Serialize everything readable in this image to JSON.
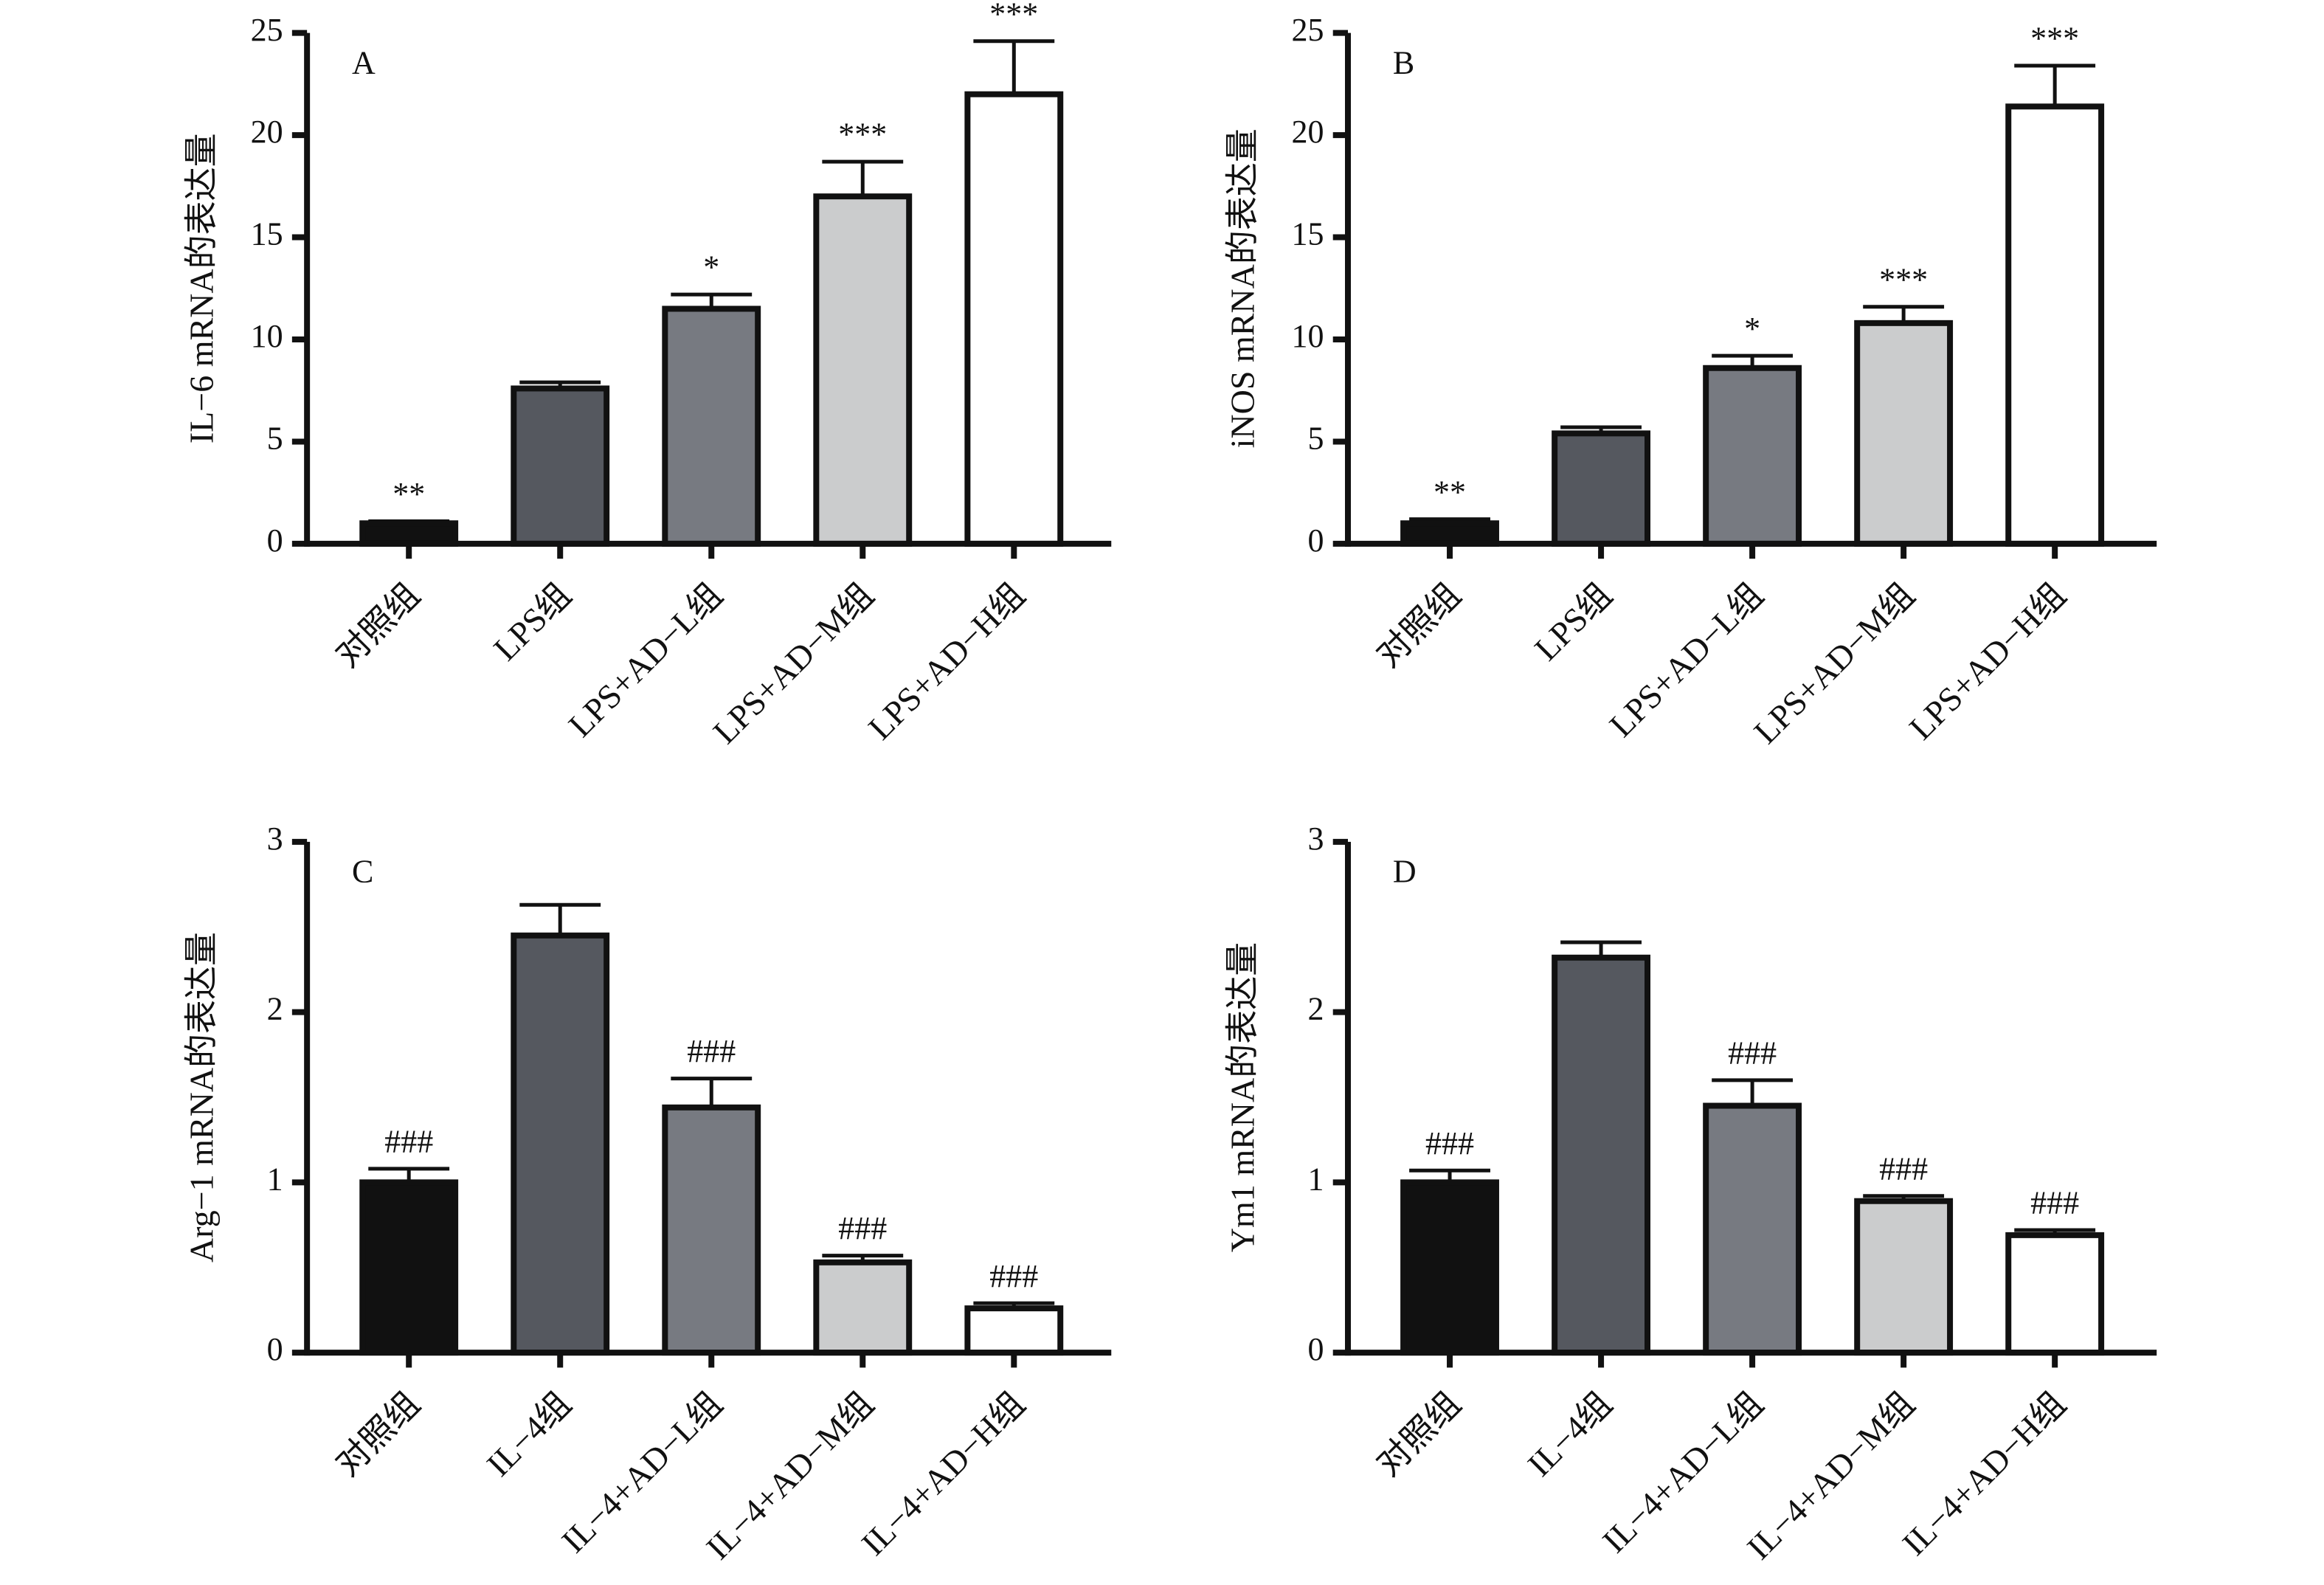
{
  "chart_data": [
    {
      "type": "bar",
      "panel": "A",
      "ylabel": "IL−6 mRNA的表达量",
      "categories": [
        "对照组",
        "LPS组",
        "LPS+AD−L组",
        "LPS+AD−M组",
        "LPS+AD−H组"
      ],
      "values": [
        1.0,
        7.6,
        11.5,
        17.0,
        22.0
      ],
      "errors": [
        0.1,
        0.3,
        0.7,
        1.7,
        2.6
      ],
      "annotations": [
        "**",
        null,
        "*",
        "***",
        "***"
      ],
      "colors": [
        "#111111",
        "#55585f",
        "#777a81",
        "#cbcccd",
        "#ffffff"
      ],
      "ylim": [
        0,
        25
      ],
      "yticks": [
        0,
        5,
        10,
        15,
        20,
        25
      ]
    },
    {
      "type": "bar",
      "panel": "B",
      "ylabel": "iNOS mRNA的表达量",
      "categories": [
        "对照组",
        "LPS组",
        "LPS+AD−L组",
        "LPS+AD−M组",
        "LPS+AD−H组"
      ],
      "values": [
        1.0,
        5.4,
        8.6,
        10.8,
        21.4
      ],
      "errors": [
        0.2,
        0.3,
        0.6,
        0.8,
        2.0
      ],
      "annotations": [
        "**",
        null,
        "*",
        "***",
        "***"
      ],
      "colors": [
        "#111111",
        "#55585f",
        "#777a81",
        "#cbcccd",
        "#ffffff"
      ],
      "ylim": [
        0,
        25
      ],
      "yticks": [
        0,
        5,
        10,
        15,
        20,
        25
      ]
    },
    {
      "type": "bar",
      "panel": "C",
      "ylabel": "Arg−1 mRNA的表达量",
      "categories": [
        "对照组",
        "IL−4组",
        "IL−4+AD−L组",
        "IL−4+AD−M组",
        "IL−4+AD−H组"
      ],
      "values": [
        1.0,
        2.45,
        1.44,
        0.53,
        0.26
      ],
      "errors": [
        0.08,
        0.18,
        0.17,
        0.04,
        0.03
      ],
      "annotations": [
        "###",
        null,
        "###",
        "###",
        "###"
      ],
      "colors": [
        "#111111",
        "#55585f",
        "#777a81",
        "#cbcccd",
        "#ffffff"
      ],
      "ylim": [
        0,
        3
      ],
      "yticks": [
        0,
        1,
        2,
        3
      ]
    },
    {
      "type": "bar",
      "panel": "D",
      "ylabel": "Ym1 mRNA的表达量",
      "categories": [
        "对照组",
        "IL−4组",
        "IL−4+AD−L组",
        "IL−4+AD−M组",
        "IL−4+AD−H组"
      ],
      "values": [
        1.0,
        2.32,
        1.45,
        0.89,
        0.69
      ],
      "errors": [
        0.07,
        0.09,
        0.15,
        0.03,
        0.03
      ],
      "annotations": [
        "###",
        null,
        "###",
        "###",
        "###"
      ],
      "colors": [
        "#111111",
        "#55585f",
        "#777a81",
        "#cbcccd",
        "#ffffff"
      ],
      "ylim": [
        0,
        3
      ],
      "yticks": [
        0,
        1,
        2,
        3
      ]
    }
  ]
}
